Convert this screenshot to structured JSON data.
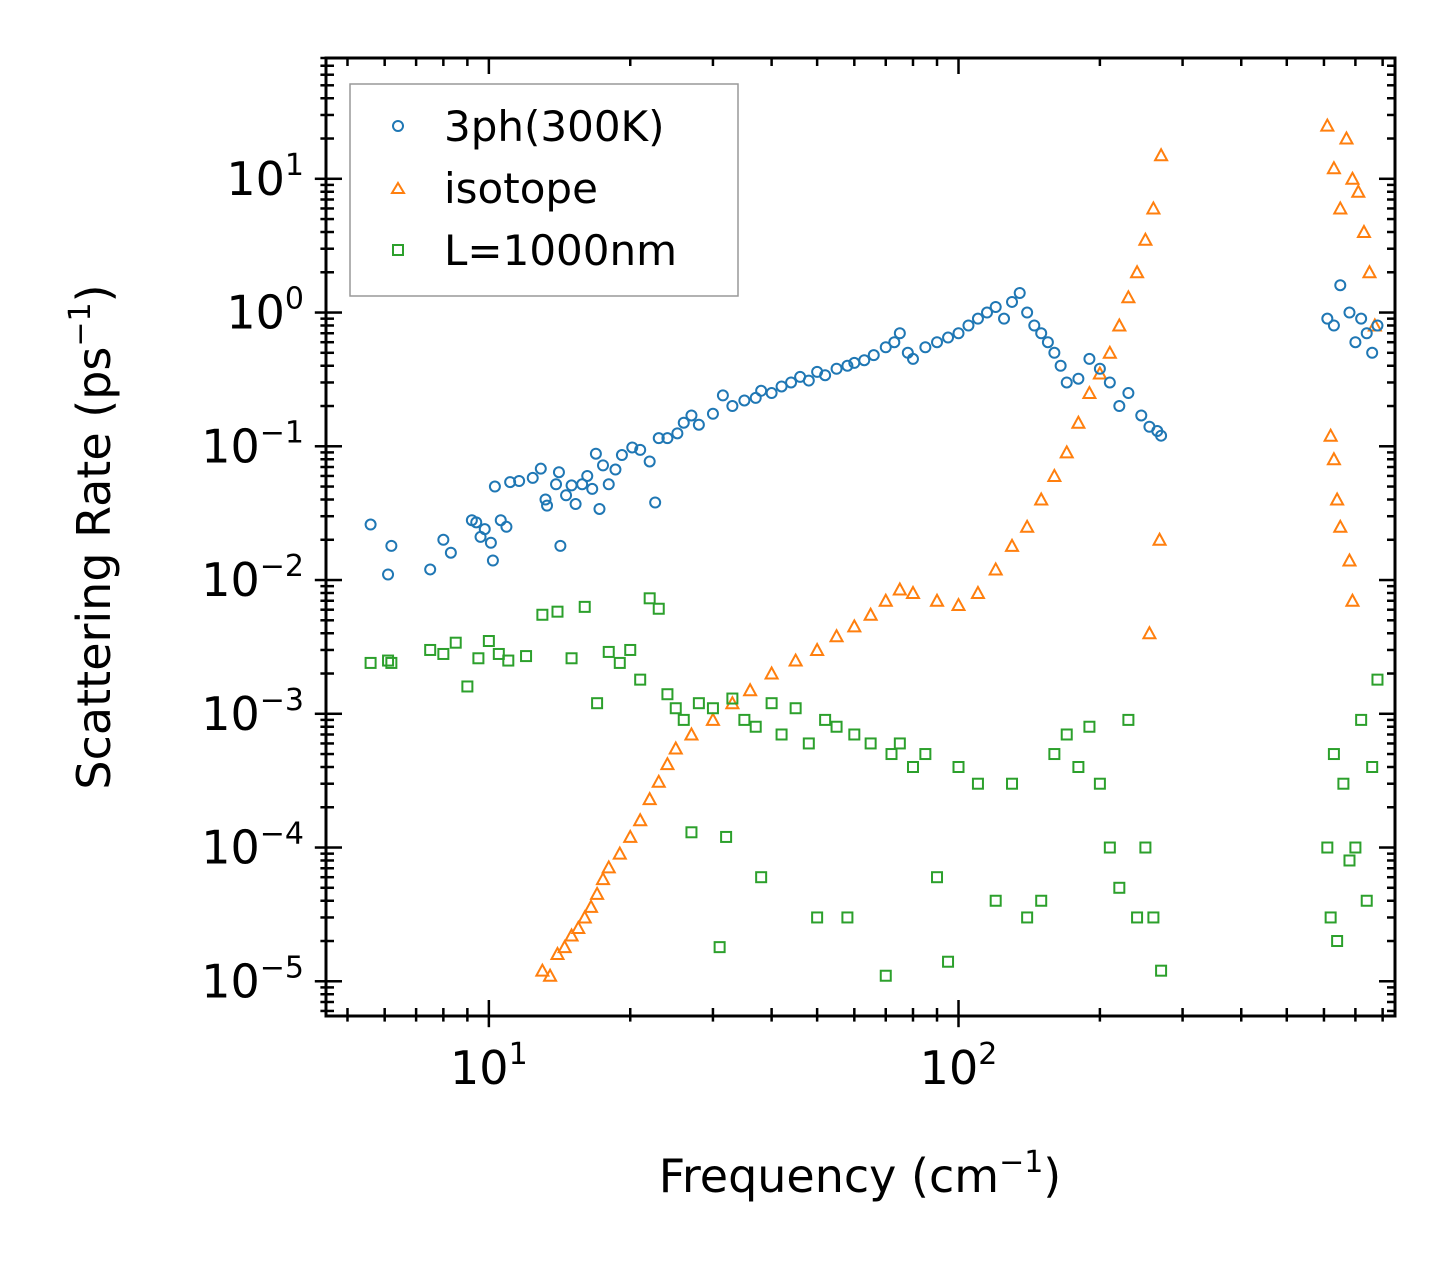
{
  "chart_data": {
    "type": "scatter",
    "xscale": "log",
    "yscale": "log",
    "xlabel": "Frequency (cm",
    "xlabel_sup": "−1",
    "xlabel_end": ")",
    "ylabel": "Scattering Rate (ps",
    "ylabel_sup": "−1",
    "ylabel_end": ")",
    "xlim": [
      4.5,
      850
    ],
    "ylim": [
      5.5e-06,
      80
    ],
    "x_ticks": [
      {
        "value": 10,
        "base": "10",
        "exp": "1"
      },
      {
        "value": 100,
        "base": "10",
        "exp": "2"
      }
    ],
    "y_ticks": [
      {
        "value": 10,
        "base": "10",
        "exp": "1"
      },
      {
        "value": 1,
        "base": "10",
        "exp": "0"
      },
      {
        "value": 0.1,
        "base": "10",
        "exp": "−1"
      },
      {
        "value": 0.01,
        "base": "10",
        "exp": "−2"
      },
      {
        "value": 0.001,
        "base": "10",
        "exp": "−3"
      },
      {
        "value": 0.0001,
        "base": "10",
        "exp": "−4"
      },
      {
        "value": 1e-05,
        "base": "10",
        "exp": "−5"
      }
    ],
    "legend_position": "top-left",
    "series": [
      {
        "name": "3ph(300K)",
        "marker": "circle",
        "color": "#1f77b4",
        "points": [
          [
            5.6,
            0.026
          ],
          [
            6.1,
            0.011
          ],
          [
            6.2,
            0.018
          ],
          [
            7.5,
            0.012
          ],
          [
            8.0,
            0.02
          ],
          [
            8.3,
            0.016
          ],
          [
            9.2,
            0.028
          ],
          [
            9.4,
            0.027
          ],
          [
            9.6,
            0.021
          ],
          [
            9.8,
            0.024
          ],
          [
            10.1,
            0.019
          ],
          [
            10.2,
            0.014
          ],
          [
            10.6,
            0.028
          ],
          [
            10.9,
            0.025
          ],
          [
            10.3,
            0.05
          ],
          [
            11.1,
            0.054
          ],
          [
            11.6,
            0.055
          ],
          [
            12.4,
            0.058
          ],
          [
            12.9,
            0.068
          ],
          [
            13.2,
            0.04
          ],
          [
            13.3,
            0.036
          ],
          [
            13.9,
            0.052
          ],
          [
            14.1,
            0.064
          ],
          [
            14.6,
            0.043
          ],
          [
            14.2,
            0.018
          ],
          [
            15.0,
            0.051
          ],
          [
            15.3,
            0.037
          ],
          [
            15.8,
            0.052
          ],
          [
            16.2,
            0.06
          ],
          [
            16.6,
            0.048
          ],
          [
            16.9,
            0.088
          ],
          [
            17.2,
            0.034
          ],
          [
            17.5,
            0.072
          ],
          [
            18.0,
            0.052
          ],
          [
            18.6,
            0.067
          ],
          [
            19.2,
            0.086
          ],
          [
            20.2,
            0.098
          ],
          [
            21.0,
            0.094
          ],
          [
            22.0,
            0.077
          ],
          [
            22.6,
            0.038
          ],
          [
            23.0,
            0.115
          ],
          [
            24.0,
            0.115
          ],
          [
            25.2,
            0.125
          ],
          [
            26.0,
            0.15
          ],
          [
            27.0,
            0.17
          ],
          [
            28.0,
            0.145
          ],
          [
            30.0,
            0.175
          ],
          [
            31.5,
            0.24
          ],
          [
            33.0,
            0.2
          ],
          [
            35.0,
            0.22
          ],
          [
            37.0,
            0.23
          ],
          [
            38.0,
            0.26
          ],
          [
            40.0,
            0.25
          ],
          [
            42.0,
            0.28
          ],
          [
            44.0,
            0.3
          ],
          [
            46.0,
            0.33
          ],
          [
            48.0,
            0.31
          ],
          [
            50.0,
            0.36
          ],
          [
            52.0,
            0.34
          ],
          [
            55.0,
            0.38
          ],
          [
            58.0,
            0.4
          ],
          [
            60.0,
            0.42
          ],
          [
            63.0,
            0.44
          ],
          [
            66.0,
            0.48
          ],
          [
            70.0,
            0.55
          ],
          [
            73.0,
            0.6
          ],
          [
            75.0,
            0.7
          ],
          [
            78.0,
            0.5
          ],
          [
            80.0,
            0.45
          ],
          [
            85.0,
            0.55
          ],
          [
            90.0,
            0.6
          ],
          [
            95.0,
            0.65
          ],
          [
            100.0,
            0.7
          ],
          [
            105.0,
            0.8
          ],
          [
            110.0,
            0.9
          ],
          [
            115.0,
            1.0
          ],
          [
            120.0,
            1.1
          ],
          [
            125.0,
            0.9
          ],
          [
            130.0,
            1.2
          ],
          [
            135.0,
            1.4
          ],
          [
            140.0,
            1.0
          ],
          [
            145.0,
            0.8
          ],
          [
            150.0,
            0.7
          ],
          [
            155.0,
            0.6
          ],
          [
            160.0,
            0.5
          ],
          [
            165.0,
            0.4
          ],
          [
            170.0,
            0.3
          ],
          [
            180.0,
            0.32
          ],
          [
            190.0,
            0.45
          ],
          [
            200.0,
            0.38
          ],
          [
            210.0,
            0.3
          ],
          [
            220.0,
            0.2
          ],
          [
            230.0,
            0.25
          ],
          [
            245.0,
            0.17
          ],
          [
            255.0,
            0.14
          ],
          [
            265.0,
            0.13
          ],
          [
            270.0,
            0.12
          ],
          [
            610.0,
            0.9
          ],
          [
            630.0,
            0.8
          ],
          [
            650.0,
            1.6
          ],
          [
            680.0,
            1.0
          ],
          [
            700.0,
            0.6
          ],
          [
            720.0,
            0.9
          ],
          [
            740.0,
            0.7
          ],
          [
            760.0,
            0.5
          ],
          [
            780.0,
            0.8
          ]
        ]
      },
      {
        "name": "isotope",
        "marker": "triangle",
        "color": "#ff7f0e",
        "points": [
          [
            13.0,
            1.2e-05
          ],
          [
            13.5,
            1.1e-05
          ],
          [
            14.0,
            1.6e-05
          ],
          [
            14.5,
            1.8e-05
          ],
          [
            15.0,
            2.2e-05
          ],
          [
            15.5,
            2.5e-05
          ],
          [
            16.0,
            3e-05
          ],
          [
            16.5,
            3.6e-05
          ],
          [
            17.0,
            4.5e-05
          ],
          [
            17.5,
            5.8e-05
          ],
          [
            18.0,
            7.1e-05
          ],
          [
            19.0,
            9e-05
          ],
          [
            20.0,
            0.00012
          ],
          [
            21.0,
            0.00016
          ],
          [
            22.0,
            0.00023
          ],
          [
            23.0,
            0.00031
          ],
          [
            24.0,
            0.00042
          ],
          [
            25.0,
            0.00055
          ],
          [
            27.0,
            0.0007
          ],
          [
            30.0,
            0.0009
          ],
          [
            33.0,
            0.0012
          ],
          [
            36.0,
            0.0015
          ],
          [
            40.0,
            0.002
          ],
          [
            45.0,
            0.0025
          ],
          [
            50.0,
            0.003
          ],
          [
            55.0,
            0.0038
          ],
          [
            60.0,
            0.0045
          ],
          [
            65.0,
            0.0055
          ],
          [
            70.0,
            0.007
          ],
          [
            75.0,
            0.0085
          ],
          [
            80.0,
            0.008
          ],
          [
            90.0,
            0.007
          ],
          [
            100.0,
            0.0065
          ],
          [
            110.0,
            0.008
          ],
          [
            120.0,
            0.012
          ],
          [
            130.0,
            0.018
          ],
          [
            140.0,
            0.025
          ],
          [
            150.0,
            0.04
          ],
          [
            160.0,
            0.06
          ],
          [
            170.0,
            0.09
          ],
          [
            180.0,
            0.15
          ],
          [
            190.0,
            0.25
          ],
          [
            200.0,
            0.35
          ],
          [
            210.0,
            0.5
          ],
          [
            220.0,
            0.8
          ],
          [
            230.0,
            1.3
          ],
          [
            240.0,
            2.0
          ],
          [
            250.0,
            3.5
          ],
          [
            260.0,
            6.0
          ],
          [
            270.0,
            15.0
          ],
          [
            268.0,
            0.02
          ],
          [
            255.0,
            0.004
          ],
          [
            620.0,
            0.12
          ],
          [
            630.0,
            0.08
          ],
          [
            640.0,
            0.04
          ],
          [
            650.0,
            0.025
          ],
          [
            680.0,
            0.014
          ],
          [
            690.0,
            0.007
          ],
          [
            610.0,
            25.0
          ],
          [
            630.0,
            12.0
          ],
          [
            650.0,
            6.0
          ],
          [
            670.0,
            20.0
          ],
          [
            690.0,
            10.0
          ],
          [
            710.0,
            8.0
          ],
          [
            730.0,
            4.0
          ],
          [
            750.0,
            2.0
          ],
          [
            770.0,
            0.8
          ]
        ]
      },
      {
        "name": "L=1000nm",
        "marker": "square",
        "color": "#2ca02c",
        "points": [
          [
            5.6,
            0.0024
          ],
          [
            6.1,
            0.0025
          ],
          [
            6.2,
            0.0024
          ],
          [
            7.5,
            0.003
          ],
          [
            8.0,
            0.0028
          ],
          [
            8.5,
            0.0034
          ],
          [
            9.0,
            0.0016
          ],
          [
            9.5,
            0.0026
          ],
          [
            10.0,
            0.0035
          ],
          [
            10.5,
            0.0028
          ],
          [
            11.0,
            0.0025
          ],
          [
            12.0,
            0.0027
          ],
          [
            13.0,
            0.0055
          ],
          [
            14.0,
            0.0058
          ],
          [
            15.0,
            0.0026
          ],
          [
            16.0,
            0.0063
          ],
          [
            17.0,
            0.0012
          ],
          [
            18.0,
            0.0029
          ],
          [
            19.0,
            0.0024
          ],
          [
            20.0,
            0.003
          ],
          [
            21.0,
            0.0018
          ],
          [
            22.0,
            0.0073
          ],
          [
            23.0,
            0.0061
          ],
          [
            24.0,
            0.0014
          ],
          [
            25.0,
            0.0011
          ],
          [
            26.0,
            0.0009
          ],
          [
            27.0,
            0.00013
          ],
          [
            28.0,
            0.0012
          ],
          [
            30.0,
            0.0011
          ],
          [
            31.0,
            1.8e-05
          ],
          [
            32.0,
            0.00012
          ],
          [
            33.0,
            0.0013
          ],
          [
            35.0,
            0.0009
          ],
          [
            37.0,
            0.0008
          ],
          [
            38.0,
            6e-05
          ],
          [
            40.0,
            0.0012
          ],
          [
            42.0,
            0.0007
          ],
          [
            45.0,
            0.0011
          ],
          [
            48.0,
            0.0006
          ],
          [
            50.0,
            3e-05
          ],
          [
            52.0,
            0.0009
          ],
          [
            55.0,
            0.0008
          ],
          [
            58.0,
            3e-05
          ],
          [
            60.0,
            0.0007
          ],
          [
            65.0,
            0.0006
          ],
          [
            70.0,
            1.1e-05
          ],
          [
            72.0,
            0.0005
          ],
          [
            75.0,
            0.0006
          ],
          [
            80.0,
            0.0004
          ],
          [
            85.0,
            0.0005
          ],
          [
            90.0,
            6e-05
          ],
          [
            95.0,
            1.4e-05
          ],
          [
            100.0,
            0.0004
          ],
          [
            110.0,
            0.0003
          ],
          [
            120.0,
            4e-05
          ],
          [
            130.0,
            0.0003
          ],
          [
            140.0,
            3e-05
          ],
          [
            150.0,
            4e-05
          ],
          [
            160.0,
            0.0005
          ],
          [
            170.0,
            0.0007
          ],
          [
            180.0,
            0.0004
          ],
          [
            190.0,
            0.0008
          ],
          [
            200.0,
            0.0003
          ],
          [
            210.0,
            0.0001
          ],
          [
            220.0,
            5e-05
          ],
          [
            230.0,
            0.0009
          ],
          [
            240.0,
            3e-05
          ],
          [
            250.0,
            0.0001
          ],
          [
            260.0,
            3e-05
          ],
          [
            270.0,
            1.2e-05
          ],
          [
            610.0,
            0.0001
          ],
          [
            620.0,
            3e-05
          ],
          [
            630.0,
            0.0005
          ],
          [
            640.0,
            2e-05
          ],
          [
            660.0,
            0.0003
          ],
          [
            680.0,
            8e-05
          ],
          [
            700.0,
            0.0001
          ],
          [
            720.0,
            0.0009
          ],
          [
            740.0,
            4e-05
          ],
          [
            760.0,
            0.0004
          ],
          [
            780.0,
            0.0018
          ]
        ]
      }
    ]
  }
}
